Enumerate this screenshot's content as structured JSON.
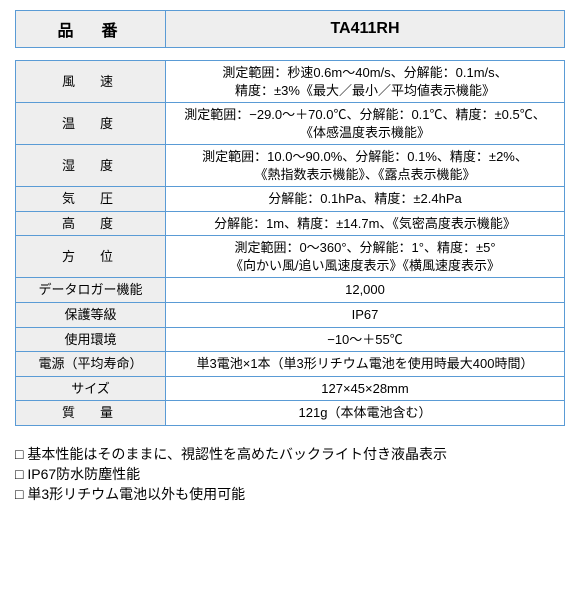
{
  "colors": {
    "border": "#5a9bd5",
    "header_bg": "#eeeeee",
    "label_bg": "#eeeeee",
    "text": "#000000"
  },
  "header": {
    "col1": "品　番",
    "col2": "TA411RH"
  },
  "rows": [
    {
      "label": "風　速",
      "value": "測定範囲：秒速0.6m～40m/s、分解能：0.1m/s、\n精度：±3%《最大／最小／平均値表示機能》",
      "multi": true,
      "ls": 6
    },
    {
      "label": "温　度",
      "value": "測定範囲：−29.0～＋70.0℃、分解能：0.1℃、精度：±0.5℃、\n《体感温度表示機能》",
      "multi": true,
      "ls": 6
    },
    {
      "label": "湿　度",
      "value": "測定範囲：10.0～90.0%、分解能：0.1%、精度：±2%、\n《熱指数表示機能》、《露点表示機能》",
      "multi": true,
      "ls": 6
    },
    {
      "label": "気　圧",
      "value": "分解能：0.1hPa、精度：±2.4hPa",
      "ls": 6
    },
    {
      "label": "高　度",
      "value": "分解能：1m、精度：±14.7m、《気密高度表示機能》",
      "ls": 6
    },
    {
      "label": "方　位",
      "value": "測定範囲：0～360°、分解能：1°、精度：±5°\n《向かい風/追い風速度表示》《横風速度表示》",
      "multi": true,
      "ls": 6
    },
    {
      "label": "データロガー機能",
      "value": "12,000",
      "ls": 0
    },
    {
      "label": "保護等級",
      "value": "IP67",
      "ls": 0
    },
    {
      "label": "使用環境",
      "value": "−10～＋55℃",
      "ls": 0
    },
    {
      "label": "電源（平均寿命）",
      "value": "単3電池×1本（単3形リチウム電池を使用時最大400時間）",
      "ls": 0
    },
    {
      "label": "サイズ",
      "value": "127×45×28mm",
      "ls": 0
    },
    {
      "label": "質　量",
      "value": "121g（本体電池含む）",
      "ls": 6
    }
  ],
  "notes": [
    "基本性能はそのままに、視認性を高めたバックライト付き液晶表示",
    "IP67防水防塵性能",
    "単3形リチウム電池以外も使用可能"
  ]
}
